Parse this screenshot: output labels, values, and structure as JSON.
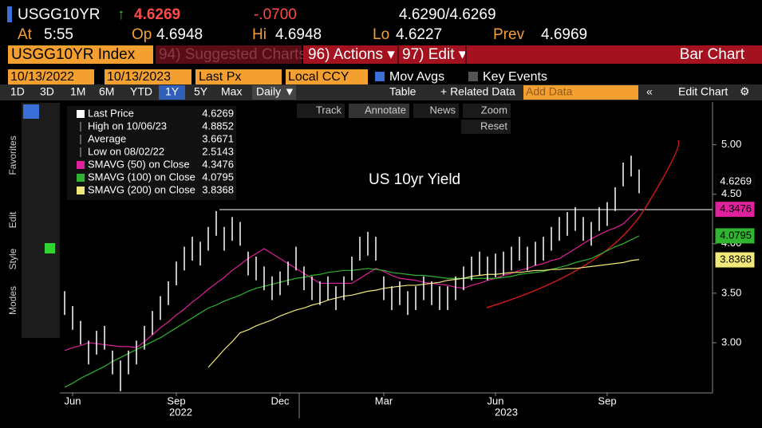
{
  "header": {
    "ticker": "USGG10YR",
    "last": "4.6269",
    "change": "-.0700",
    "bid_ask": "4.6290/4.6269",
    "at_label": "At",
    "at": "5:55",
    "open_label": "Op",
    "open": "4.6948",
    "high_label": "Hi",
    "high": "4.6948",
    "low_label": "Lo",
    "low": "4.6227",
    "prev_label": "Prev",
    "prev": "4.6969"
  },
  "menu": {
    "security": "USGG10YR Index",
    "suggested": "94) Suggested Charts",
    "actions": "96) Actions ▾",
    "edit": "97) Edit ▾",
    "chart_type": "Bar Chart"
  },
  "controls": {
    "start": "10/13/2022",
    "end": "10/13/2023",
    "field": "Last Px",
    "currency": "Local CCY",
    "mov_avgs": "Mov Avgs",
    "key_events": "Key Events"
  },
  "toolbar": {
    "periods": [
      "1D",
      "3D",
      "1M",
      "6M",
      "YTD",
      "1Y",
      "5Y",
      "Max"
    ],
    "frequency": "Daily ▼",
    "table": "Table",
    "related": "+ Related Data",
    "add_data": "Add Data",
    "edit_chart": "Edit Chart"
  },
  "tools": [
    "Track",
    "Annotate",
    "News",
    "Zoom",
    "Reset"
  ],
  "side_tabs": [
    "Favorites",
    "Edit",
    "Style",
    "Modes"
  ],
  "chart_data": {
    "type": "ohlc",
    "title": "US 10yr Yield",
    "color": "#ffffff",
    "categories": [
      null,
      "Jun",
      null,
      null,
      null,
      null,
      null,
      null,
      null,
      null,
      null,
      null,
      null,
      null,
      "Sep",
      null,
      null,
      null,
      null,
      null,
      null,
      null,
      null,
      null,
      null,
      null,
      null,
      "Dec",
      null,
      null,
      null,
      null,
      null,
      null,
      null,
      null,
      null,
      null,
      null,
      null,
      "Mar",
      null,
      null,
      null,
      null,
      null,
      null,
      null,
      null,
      null,
      null,
      null,
      null,
      null,
      "Jun",
      null,
      null,
      null,
      null,
      null,
      null,
      null,
      null,
      null,
      null,
      null,
      null,
      null,
      "Sep",
      null,
      null,
      null,
      null
    ],
    "years": [
      "2022",
      "2023"
    ],
    "high": [
      3.52,
      3.37,
      3.22,
      3.02,
      3.12,
      3.17,
      2.92,
      2.82,
      2.92,
      3.02,
      3.17,
      3.32,
      3.47,
      3.62,
      3.82,
      3.97,
      4.07,
      4.02,
      4.17,
      4.33,
      4.17,
      4.27,
      4.22,
      3.92,
      3.87,
      3.77,
      3.67,
      3.72,
      3.82,
      3.97,
      3.77,
      3.67,
      3.62,
      3.67,
      3.57,
      3.67,
      3.87,
      4.07,
      4.12,
      4.07,
      3.67,
      3.57,
      3.62,
      3.52,
      3.57,
      3.67,
      3.62,
      3.57,
      3.57,
      3.67,
      3.77,
      3.87,
      3.92,
      3.87,
      3.9,
      3.92,
      3.97,
      4.07,
      3.97,
      4.02,
      4.07,
      4.17,
      4.27,
      4.32,
      4.37,
      4.27,
      4.22,
      4.37,
      4.42,
      4.57,
      4.82,
      4.89,
      4.75
    ],
    "low": [
      3.28,
      3.13,
      2.98,
      2.78,
      2.88,
      2.93,
      2.68,
      2.51,
      2.68,
      2.78,
      2.93,
      3.08,
      3.23,
      3.38,
      3.58,
      3.73,
      3.83,
      3.78,
      3.93,
      4.08,
      3.93,
      4.03,
      3.98,
      3.68,
      3.63,
      3.53,
      3.43,
      3.48,
      3.58,
      3.73,
      3.53,
      3.43,
      3.38,
      3.43,
      3.33,
      3.43,
      3.63,
      3.83,
      3.88,
      3.83,
      3.43,
      3.33,
      3.38,
      3.28,
      3.33,
      3.43,
      3.38,
      3.33,
      3.33,
      3.43,
      3.53,
      3.63,
      3.68,
      3.63,
      3.66,
      3.68,
      3.73,
      3.83,
      3.73,
      3.78,
      3.83,
      3.93,
      4.03,
      4.08,
      4.13,
      4.03,
      3.98,
      4.13,
      4.18,
      4.33,
      4.58,
      4.68,
      4.51
    ],
    "stats": [
      {
        "label": "Last Price",
        "value": 4.6269
      },
      {
        "label": "High on 10/06/23",
        "value": 4.8852
      },
      {
        "label": "Average",
        "value": 3.6671
      },
      {
        "label": "Low on 08/02/22",
        "value": 2.5143
      }
    ],
    "series": [
      {
        "name": "SMAVG (50)  on Close",
        "color": "#e0209c",
        "last": 4.3476,
        "values": [
          2.92,
          2.95,
          2.97,
          3.0,
          2.99,
          2.98,
          2.97,
          2.96,
          2.96,
          2.95,
          3.01,
          3.08,
          3.15,
          3.21,
          3.28,
          3.34,
          3.41,
          3.47,
          3.54,
          3.6,
          3.66,
          3.73,
          3.79,
          3.85,
          3.9,
          3.95,
          3.9,
          3.85,
          3.8,
          3.75,
          3.7,
          3.65,
          3.6,
          3.6,
          3.6,
          3.6,
          3.6,
          3.65,
          3.7,
          3.75,
          3.72,
          3.68,
          3.65,
          3.64,
          3.63,
          3.61,
          3.6,
          3.59,
          3.58,
          3.56,
          3.55,
          3.58,
          3.6,
          3.63,
          3.65,
          3.68,
          3.7,
          3.73,
          3.75,
          3.78,
          3.8,
          3.83,
          3.85,
          3.9,
          3.95,
          4.0,
          4.05,
          4.09,
          4.13,
          4.16,
          4.2,
          4.28,
          4.35
        ]
      },
      {
        "name": "SMAVG (100)  on Close",
        "color": "#2fb52f",
        "last": 4.0795,
        "values": [
          2.55,
          2.59,
          2.64,
          2.68,
          2.72,
          2.76,
          2.81,
          2.85,
          2.89,
          2.93,
          2.97,
          3.01,
          3.05,
          3.1,
          3.15,
          3.2,
          3.25,
          3.3,
          3.35,
          3.38,
          3.42,
          3.45,
          3.48,
          3.52,
          3.55,
          3.57,
          3.59,
          3.61,
          3.63,
          3.65,
          3.66,
          3.68,
          3.69,
          3.71,
          3.72,
          3.73,
          3.73,
          3.74,
          3.75,
          3.74,
          3.73,
          3.71,
          3.7,
          3.69,
          3.68,
          3.68,
          3.67,
          3.66,
          3.65,
          3.65,
          3.65,
          3.65,
          3.65,
          3.65,
          3.65,
          3.66,
          3.67,
          3.69,
          3.7,
          3.71,
          3.72,
          3.74,
          3.76,
          3.78,
          3.81,
          3.83,
          3.85,
          3.89,
          3.93,
          3.97,
          4.0,
          4.04,
          4.08
        ]
      },
      {
        "name": "SMAVG (200)  on Close",
        "color": "#f0e878",
        "last": 3.8368,
        "values": [
          null,
          null,
          null,
          null,
          null,
          null,
          null,
          null,
          null,
          null,
          null,
          null,
          null,
          null,
          null,
          null,
          null,
          null,
          2.75,
          2.84,
          2.93,
          3.01,
          3.1,
          3.13,
          3.17,
          3.2,
          3.23,
          3.27,
          3.3,
          3.33,
          3.35,
          3.38,
          3.4,
          3.43,
          3.45,
          3.47,
          3.48,
          3.5,
          3.52,
          3.53,
          3.55,
          3.56,
          3.57,
          3.58,
          3.58,
          3.59,
          3.6,
          3.61,
          3.63,
          3.64,
          3.65,
          3.67,
          3.68,
          3.69,
          3.69,
          3.7,
          3.71,
          3.71,
          3.72,
          3.73,
          3.73,
          3.74,
          3.74,
          3.75,
          3.75,
          3.76,
          3.77,
          3.78,
          3.79,
          3.8,
          3.81,
          3.83,
          3.84
        ]
      }
    ],
    "ylim": [
      2.5,
      5.4
    ],
    "yticks": [
      {
        "value": 3,
        "label": "3.00"
      },
      {
        "value": 3.5,
        "label": "3.50"
      },
      {
        "value": 4,
        "label": "4.00"
      },
      {
        "value": 4.5,
        "label": "4.50"
      },
      {
        "value": 5,
        "label": "5.00"
      }
    ]
  }
}
